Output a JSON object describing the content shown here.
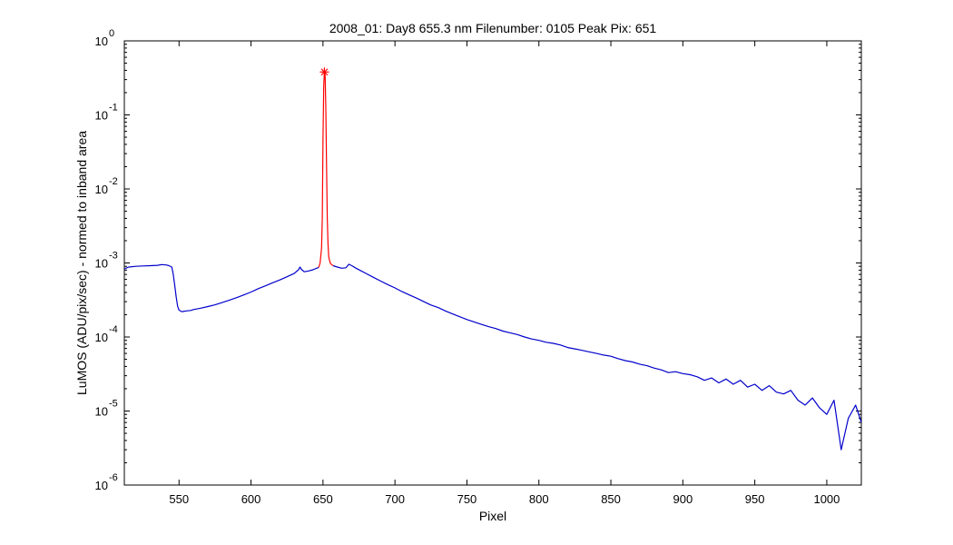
{
  "chart_data": {
    "type": "line",
    "title": "2008_01: Day8  655.3 nm  Filenumber: 0105 Peak Pix: 651",
    "xlabel": "Pixel",
    "ylabel": "LuMOS (ADU/pix/sec) - normed to inband area",
    "xlim": [
      512,
      1024
    ],
    "ylim": [
      1e-06,
      1
    ],
    "yscale": "log",
    "grid": false,
    "x_ticks": [
      550,
      600,
      650,
      700,
      750,
      800,
      850,
      900,
      950,
      1000
    ],
    "y_ticks": [
      {
        "value": 1,
        "base": "10",
        "exp": "0"
      },
      {
        "value": 0.1,
        "base": "10",
        "exp": "-1"
      },
      {
        "value": 0.01,
        "base": "10",
        "exp": "-2"
      },
      {
        "value": 0.001,
        "base": "10",
        "exp": "-3"
      },
      {
        "value": 0.0001,
        "base": "10",
        "exp": "-4"
      },
      {
        "value": 1e-05,
        "base": "10",
        "exp": "-5"
      },
      {
        "value": 1e-06,
        "base": "10",
        "exp": "-6"
      }
    ],
    "series": [
      {
        "color": "#0000cc",
        "x": [
          512,
          515,
          520,
          525,
          530,
          535,
          538,
          541,
          543,
          545,
          546,
          547,
          548,
          549,
          550,
          552,
          555,
          558,
          560,
          565,
          570,
          575,
          580,
          585,
          590,
          595,
          600,
          605,
          610,
          615,
          620,
          625,
          630,
          633,
          634,
          635,
          637,
          640,
          643,
          645,
          647
        ],
        "y": [
          0.00083,
          0.00088,
          0.0009,
          0.00091,
          0.00092,
          0.00093,
          0.00095,
          0.00094,
          0.00092,
          0.00088,
          0.0007,
          0.0005,
          0.00035,
          0.00026,
          0.00023,
          0.00022,
          0.000225,
          0.000228,
          0.000235,
          0.000245,
          0.000258,
          0.000272,
          0.000292,
          0.000315,
          0.00034,
          0.00037,
          0.000405,
          0.00045,
          0.00049,
          0.00054,
          0.00059,
          0.00065,
          0.00072,
          0.00081,
          0.00088,
          0.00082,
          0.00076,
          0.00078,
          0.00081,
          0.00084,
          0.00087
        ]
      },
      {
        "color": "#ff0000",
        "x": [
          647,
          648,
          649,
          649.5,
          650,
          650.5,
          651,
          651.5,
          652,
          652.5,
          653,
          653.5,
          654,
          655,
          656,
          657
        ],
        "y": [
          0.00087,
          0.001,
          0.0016,
          0.004,
          0.05,
          0.25,
          0.38,
          0.35,
          0.12,
          0.02,
          0.004,
          0.0018,
          0.0012,
          0.001,
          0.00095,
          0.00092
        ]
      },
      {
        "color": "#0000cc",
        "x": [
          657,
          660,
          663,
          666,
          668,
          670,
          673,
          676,
          680,
          685,
          690,
          695,
          700,
          705,
          710,
          715,
          720,
          725,
          730,
          735,
          740,
          745,
          750,
          755,
          760,
          765,
          770,
          775,
          780,
          785,
          790,
          795,
          800,
          805,
          810,
          815,
          820,
          825,
          830,
          835,
          840,
          845,
          850,
          855,
          860,
          865,
          870,
          875,
          880,
          885,
          890,
          895,
          900,
          905,
          910,
          915,
          920,
          925,
          930,
          935,
          940,
          945,
          950,
          955,
          960,
          965,
          970,
          975,
          980,
          985,
          990,
          995,
          1000,
          1005,
          1010,
          1015,
          1020,
          1024
        ],
        "y": [
          0.00092,
          0.00088,
          0.00085,
          0.00086,
          0.00096,
          0.00092,
          0.00085,
          0.00079,
          0.00072,
          0.00064,
          0.00057,
          0.00051,
          0.00046,
          0.00041,
          0.00037,
          0.000335,
          0.0003,
          0.00027,
          0.00025,
          0.000225,
          0.000205,
          0.000188,
          0.000172,
          0.00016,
          0.000148,
          0.000138,
          0.00013,
          0.00012,
          0.000114,
          0.000108,
          0.0001,
          9.4e-05,
          9e-05,
          8.5e-05,
          8.2e-05,
          7.8e-05,
          7.2e-05,
          6.9e-05,
          6.6e-05,
          6.3e-05,
          6e-05,
          5.7e-05,
          5.5e-05,
          5.1e-05,
          4.8e-05,
          4.6e-05,
          4.3e-05,
          4.1e-05,
          3.8e-05,
          3.6e-05,
          3.3e-05,
          3.4e-05,
          3.2e-05,
          3.1e-05,
          2.9e-05,
          2.6e-05,
          2.8e-05,
          2.4e-05,
          2.7e-05,
          2.3e-05,
          2.6e-05,
          2.1e-05,
          2.3e-05,
          1.9e-05,
          2.2e-05,
          1.8e-05,
          1.7e-05,
          1.9e-05,
          1.4e-05,
          1.2e-05,
          1.5e-05,
          1.1e-05,
          9e-06,
          1.4e-05,
          3e-06,
          8e-06,
          1.2e-05,
          7e-06
        ]
      }
    ],
    "peak_marker": {
      "x": 651,
      "y": 0.38,
      "color": "#ff0000",
      "symbol": "asterisk"
    }
  }
}
